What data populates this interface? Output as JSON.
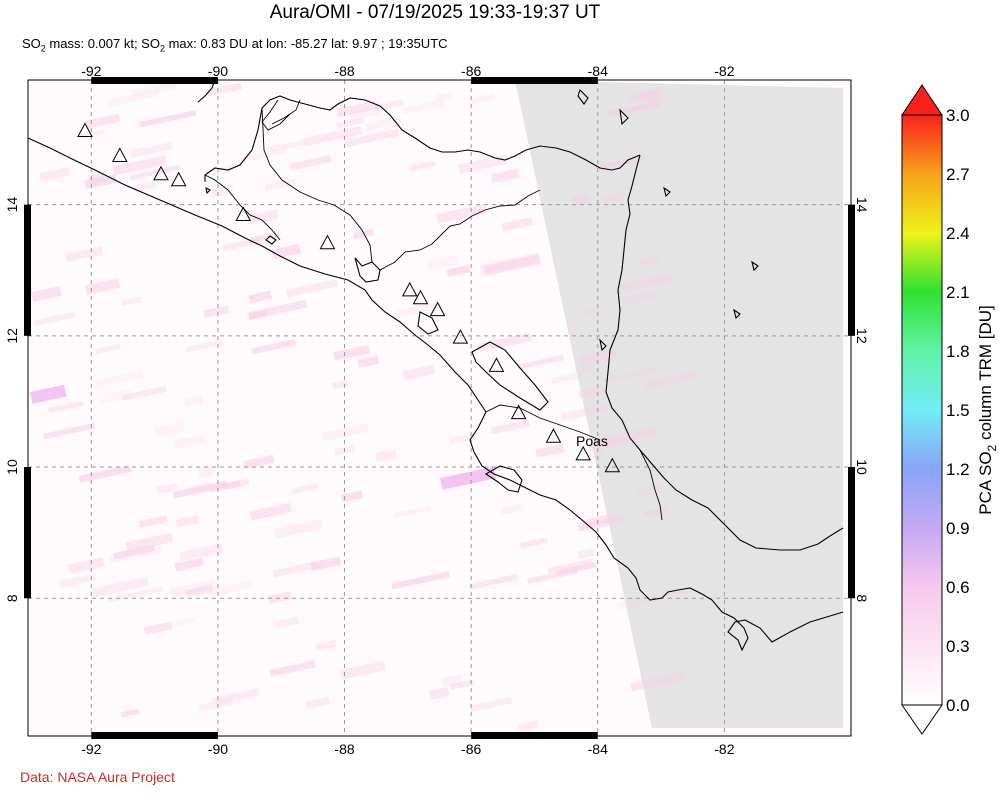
{
  "title": "Aura/OMI - 07/19/2025 19:33-19:37 UT",
  "subtitle": {
    "p1": "SO",
    "p2": " mass: 0.007 kt; SO",
    "p3": " max: 0.83 DU at lon: -85.27 lat: 9.97 ; 19:35UTC",
    "sub": "2"
  },
  "credit": "Data: NASA Aura Project",
  "map": {
    "lon_range": [
      -93,
      -80
    ],
    "lat_range": [
      5.9,
      15.9
    ],
    "lon_ticks": [
      "-92",
      "-90",
      "-88",
      "-86",
      "-84",
      "-82"
    ],
    "lat_ticks": [
      "8",
      "10",
      "12",
      "14"
    ],
    "volcano_label": "Poas",
    "volcanoes": [
      {
        "lon": -92.1,
        "lat": 15.13
      },
      {
        "lon": -91.55,
        "lat": 14.75
      },
      {
        "lon": -90.9,
        "lat": 14.47
      },
      {
        "lon": -90.62,
        "lat": 14.38
      },
      {
        "lon": -89.6,
        "lat": 13.85
      },
      {
        "lon": -88.27,
        "lat": 13.42
      },
      {
        "lon": -86.97,
        "lat": 12.7
      },
      {
        "lon": -86.8,
        "lat": 12.58
      },
      {
        "lon": -86.53,
        "lat": 12.4
      },
      {
        "lon": -86.17,
        "lat": 11.98
      },
      {
        "lon": -85.6,
        "lat": 11.55
      },
      {
        "lon": -85.25,
        "lat": 10.83
      },
      {
        "lon": -84.7,
        "lat": 10.47
      },
      {
        "lon": -84.23,
        "lat": 10.2
      },
      {
        "lon": -83.77,
        "lat": 10.02
      }
    ],
    "colors": {
      "no_data": "#e4e4e4",
      "grid": "#999999",
      "coast": "#000000",
      "so2": "#f7cfe6"
    }
  },
  "colorbar": {
    "title": "PCA SO",
    "title_sub": "2",
    "title_rest": " column TRM [DU]",
    "labels": [
      "3.0",
      "2.7",
      "2.4",
      "2.1",
      "1.8",
      "1.5",
      "1.2",
      "0.9",
      "0.6",
      "0.3",
      "0.0"
    ],
    "min": 0.0,
    "max": 3.0
  }
}
